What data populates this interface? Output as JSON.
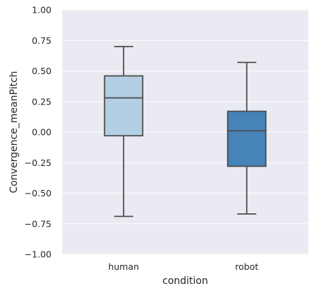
{
  "chart_data": {
    "type": "box",
    "xlabel": "condition",
    "ylabel": "Convergence_meanPitch",
    "ylim": [
      -1.0,
      1.0
    ],
    "yticks": [
      -1.0,
      -0.75,
      -0.5,
      -0.25,
      0.0,
      0.25,
      0.5,
      0.75,
      1.0
    ],
    "ytick_labels": [
      "−1.00",
      "−0.75",
      "−0.50",
      "−0.25",
      "0.00",
      "0.25",
      "0.50",
      "0.75",
      "1.00"
    ],
    "categories": [
      "human",
      "robot"
    ],
    "boxes": [
      {
        "category": "human",
        "whisker_low": -0.69,
        "q1": -0.03,
        "median": 0.28,
        "q3": 0.46,
        "whisker_high": 0.7,
        "color": "#b3cfe4"
      },
      {
        "category": "robot",
        "whisker_low": -0.67,
        "q1": -0.28,
        "median": 0.01,
        "q3": 0.17,
        "whisker_high": 0.57,
        "color": "#4683b7"
      }
    ],
    "grid": true,
    "background_color": "#eaeaf2",
    "line_color": "#4d4d4d"
  }
}
